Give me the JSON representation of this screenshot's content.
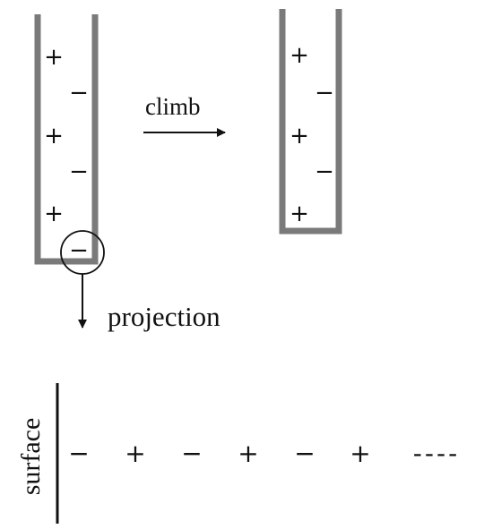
{
  "colors": {
    "wall": "#7a7a7a",
    "ink": "#111111",
    "background": "#ffffff"
  },
  "labels": {
    "climb": "climb",
    "projection": "projection",
    "surface": "surface"
  },
  "left_tube": {
    "charges": [
      "+",
      "−",
      "+",
      "−",
      "+",
      "−"
    ]
  },
  "right_tube": {
    "charges": [
      "+",
      "−",
      "+",
      "−",
      "+"
    ]
  },
  "surface_row": {
    "charges": [
      "−",
      "+",
      "−",
      "+",
      "−",
      "+"
    ],
    "continuation": "----"
  },
  "icons": {
    "climb_arrow": "arrow-right-icon",
    "projection_arrow": "arrow-down-icon",
    "highlight_circle": "circle-outline-icon"
  }
}
